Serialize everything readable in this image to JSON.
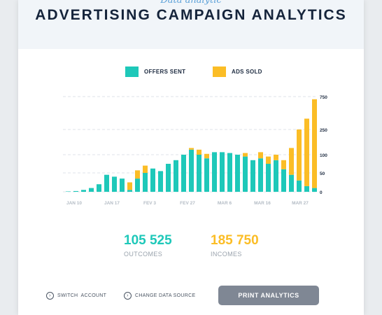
{
  "header": {
    "subtitle": "Data analytic",
    "title": "ADVERTISING CAMPAIGN ANALYTICS"
  },
  "colors": {
    "offers": "#1ec8b9",
    "ads": "#fbbd26",
    "header_bg": "#f1f5f9"
  },
  "legend": {
    "offers_label": "OFFERS SENT",
    "ads_label": "ADS SOLD"
  },
  "chart_data": {
    "type": "bar",
    "stacked": true,
    "grid": true,
    "x_tick_labels": [
      "JAN 10",
      "JAN 17",
      "FEV 3",
      "FEV 27",
      "MAR 6",
      "MAR 16",
      "MAR 27"
    ],
    "y_tick_labels": [
      "0",
      "50",
      "100",
      "250",
      "750"
    ],
    "y_tick_values": [
      0,
      50,
      100,
      250,
      750
    ],
    "series": [
      {
        "name": "OFFERS SENT",
        "values": [
          1,
          2,
          5,
          10,
          20,
          45,
          40,
          35,
          5,
          35,
          50,
          62,
          55,
          75,
          85,
          100,
          130,
          100,
          90,
          115,
          115,
          110,
          100,
          95,
          85,
          90,
          75,
          85,
          60,
          45,
          30,
          15,
          10
        ]
      },
      {
        "name": "ADS SOLD",
        "values": [
          0,
          0,
          0,
          0,
          0,
          0,
          0,
          0,
          20,
          22,
          20,
          0,
          0,
          0,
          0,
          0,
          10,
          30,
          15,
          0,
          0,
          0,
          0,
          15,
          0,
          25,
          20,
          15,
          25,
          95,
          220,
          400,
          700
        ]
      }
    ]
  },
  "stats": [
    {
      "value": "105 525",
      "label": "OUTCOMES"
    },
    {
      "value": "185 750",
      "label": "INCOMES"
    }
  ],
  "footer": {
    "switch_label": "SWITCH  ACCOUNT",
    "change_label": "CHANGE DATA SOURCE",
    "print_label": "PRINT ANALYTICS"
  }
}
